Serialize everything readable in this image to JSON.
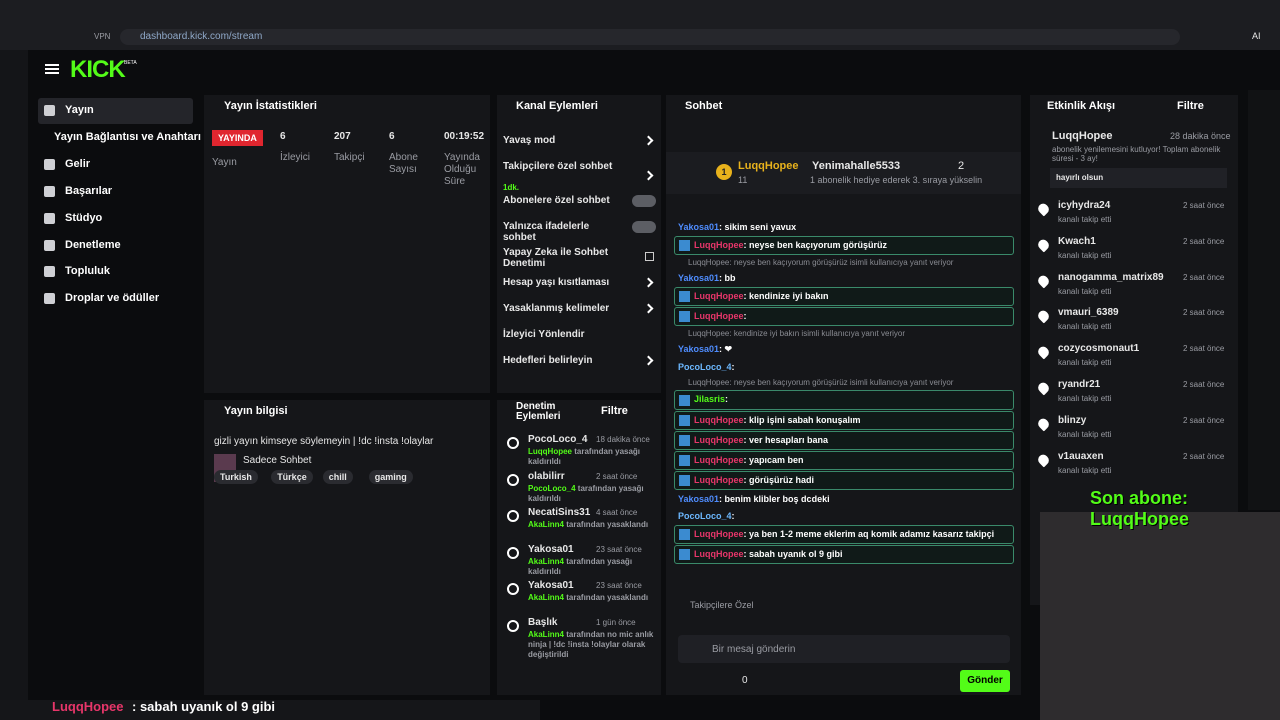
{
  "browser": {
    "url": "dashboard.kick.com/stream",
    "vpn": "VPN",
    "ai": "AI"
  },
  "header": {
    "logo": "KICK",
    "logo_tag": "BETA"
  },
  "sidebar": {
    "items": [
      "Yayın",
      "Yayın Bağlantısı ve Anahtarı",
      "Gelir",
      "Başarılar",
      "Stüdyo",
      "Denetleme",
      "Topluluk",
      "Droplar ve ödüller"
    ]
  },
  "stats": {
    "title": "Yayın İstatistikleri",
    "badge": "YAYINDA",
    "badge_label": "Yayın",
    "cells": [
      {
        "value": "6",
        "label": "İzleyici"
      },
      {
        "value": "207",
        "label": "Takipçi"
      },
      {
        "value": "6",
        "label": "Abone Sayısı"
      },
      {
        "value": "00:19:52",
        "label": "Yayında Olduğu Süre"
      }
    ]
  },
  "channel_actions": {
    "title": "Kanal Eylemleri",
    "items": [
      {
        "label": "Yavaş mod",
        "control": "arrow"
      },
      {
        "label": "Takipçilere özel sohbet",
        "sub": "1dk.",
        "control": "arrow"
      },
      {
        "label": "Abonelere özel sohbet",
        "control": "toggle"
      },
      {
        "label": "Yalnızca ifadelerle sohbet",
        "control": "toggle"
      },
      {
        "label": "Yapay Zeka ile Sohbet Denetimi",
        "control": "link"
      },
      {
        "label": "Hesap yaşı kısıtlaması",
        "control": "arrow"
      },
      {
        "label": "Yasaklanmış kelimeler",
        "control": "arrow"
      },
      {
        "label": "İzleyici Yönlendir",
        "control": "none"
      },
      {
        "label": "Hedefleri belirleyin",
        "control": "arrow"
      }
    ]
  },
  "stream_info": {
    "title": "Yayın bilgisi",
    "stream_title": "gizli yayın kimseye söylemeyin | !dc !insta !olaylar",
    "category": "Sadece Sohbet",
    "tags": [
      "Turkish",
      "Türkçe",
      "chill",
      "gaming"
    ]
  },
  "moderation": {
    "title": "Denetim Eylemleri",
    "filter": "Filtre",
    "items": [
      {
        "user": "PocoLoco_4",
        "time": "18 dakika önce",
        "actor": "LuqqHopee",
        "action": " tarafından yasağı kaldırıldı"
      },
      {
        "user": "olabilirr",
        "time": "2 saat önce",
        "actor": "PocoLoco_4",
        "action": " tarafından yasağı kaldırıldı"
      },
      {
        "user": "NecatiSins31",
        "time": "4 saat önce",
        "actor": "AkaLinn4",
        "action": " tarafından yasaklandı"
      },
      {
        "user": "Yakosa01",
        "time": "23 saat önce",
        "actor": "AkaLinn4",
        "action": " tarafından yasağı kaldırıldı"
      },
      {
        "user": "Yakosa01",
        "time": "23 saat önce",
        "actor": "AkaLinn4",
        "action": " tarafından yasaklandı"
      },
      {
        "user": "Başlık",
        "time": "1 gün önce",
        "actor": "AkaLinn4",
        "action": " tarafından no mic anlık ninja | !dc !insta !olaylar olarak değiştirildi"
      }
    ]
  },
  "chat": {
    "title": "Sohbet",
    "pinned": {
      "user": "LuqqHopee",
      "rank": "1",
      "count": "11",
      "gifter": "Yenimahalle5533",
      "gift_count": "2",
      "hint": "1 abonelik hediye ederek 3. sıraya yükselin"
    },
    "messages": [
      {
        "user": "Yakosa01",
        "color": "#4f8dff",
        "text": ": sikim seni yavux"
      },
      {
        "user": "LuqqHopee",
        "color": "#e8366a",
        "text": ": neyse ben kaçıyorum görüşürüz",
        "highlight": true
      },
      {
        "reply": "LuqqHopee: neyse ben kaçıyorum görüşürüz isimli kullanıcıya yanıt veriyor",
        "user": "Yakosa01",
        "color": "#4f8dff",
        "text": ": bb"
      },
      {
        "user": "LuqqHopee",
        "color": "#e8366a",
        "text": ": kendinize iyi bakın",
        "highlight": true
      },
      {
        "user": "LuqqHopee",
        "color": "#e8366a",
        "text": ":",
        "highlight": true
      },
      {
        "reply": "LuqqHopee: kendinize iyi bakın isimli kullanıcıya yanıt veriyor",
        "user": "Yakosa01",
        "color": "#4f8dff",
        "text": ": ❤"
      },
      {
        "user": "PocoLoco_4",
        "color": "#6cb8ff",
        "text": ":"
      },
      {
        "reply": "LuqqHopee: neyse ben kaçıyorum görüşürüz isimli kullanıcıya yanıt veriyor",
        "user": "Jilasris",
        "color": "#53fc18",
        "text": ":",
        "highlight": true
      },
      {
        "user": "LuqqHopee",
        "color": "#e8366a",
        "text": ": klip işini sabah konuşalım",
        "highlight": true
      },
      {
        "user": "LuqqHopee",
        "color": "#e8366a",
        "text": ": ver hesapları bana",
        "highlight": true
      },
      {
        "user": "LuqqHopee",
        "color": "#e8366a",
        "text": ": yapıcam ben",
        "highlight": true
      },
      {
        "user": "LuqqHopee",
        "color": "#e8366a",
        "text": ": görüşürüz hadi",
        "highlight": true
      },
      {
        "user": "Yakosa01",
        "color": "#4f8dff",
        "text": ": benim klibler boş dcdeki"
      },
      {
        "user": "PocoLoco_4",
        "color": "#6cb8ff",
        "text": ":"
      },
      {
        "user": "LuqqHopee",
        "color": "#e8366a",
        "text": ": ya ben 1-2 meme eklerim aq komik adamız kasarız takipçi",
        "highlight": true
      },
      {
        "user": "LuqqHopee",
        "color": "#e8366a",
        "text": ": sabah uyanık ol 9 gibi",
        "highlight": true
      }
    ],
    "emote_bar": "Takipçilere Özel",
    "placeholder": "Bir mesaj gönderin",
    "points": "0",
    "send": "Gönder"
  },
  "activity": {
    "title": "Etkinlik Akışı",
    "filter": "Filtre",
    "featured": {
      "user": "LuqqHopee",
      "time": "28 dakika önce",
      "text": "abonelik yenilemesini kutluyor! Toplam abonelik süresi - 3 ay!",
      "message": "hayırlı olsun"
    },
    "items": [
      {
        "user": "icyhydra24",
        "time": "2 saat önce",
        "text": "kanalı takip etti"
      },
      {
        "user": "Kwach1",
        "time": "2 saat önce",
        "text": "kanalı takip etti"
      },
      {
        "user": "nanogamma_matrix89",
        "time": "2 saat önce",
        "text": "kanalı takip etti"
      },
      {
        "user": "vmauri_6389",
        "time": "2 saat önce",
        "text": "kanalı takip etti"
      },
      {
        "user": "cozycosmonaut1",
        "time": "2 saat önce",
        "text": "kanalı takip etti"
      },
      {
        "user": "ryandr21",
        "time": "2 saat önce",
        "text": "kanalı takip etti"
      },
      {
        "user": "blinzy",
        "time": "2 saat önce",
        "text": "kanalı takip etti"
      },
      {
        "user": "v1auaxen",
        "time": "2 saat önce",
        "text": "kanalı takip etti"
      }
    ]
  },
  "overlay": {
    "last_sub": "Son abone: LuqqHopee",
    "ticker_user": "LuqqHopee",
    "ticker_text": " : sabah uyanık ol 9 gibi"
  }
}
